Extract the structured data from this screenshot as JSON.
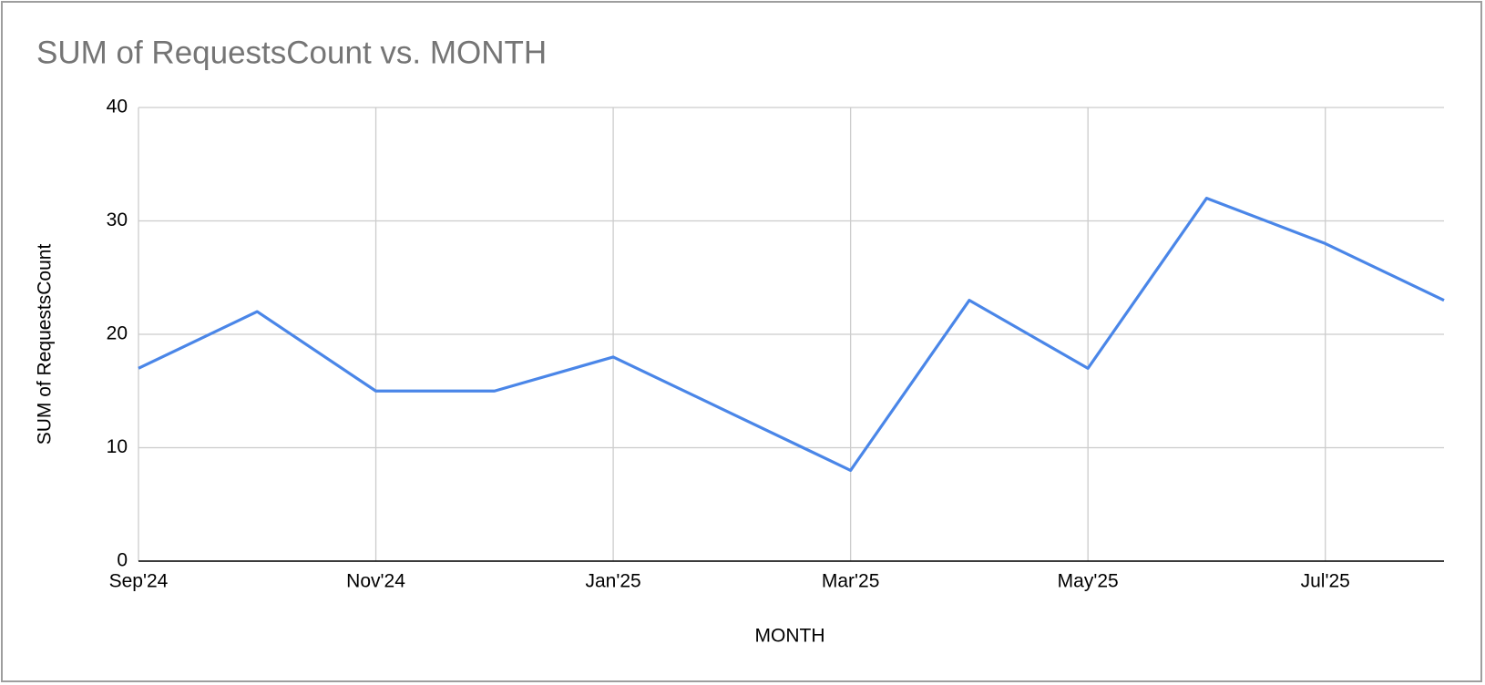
{
  "chart_data": {
    "type": "line",
    "title": "SUM of RequestsCount vs. MONTH",
    "x_label": "MONTH",
    "y_label": "SUM of RequestsCount",
    "categories": [
      "Sep'24",
      null,
      "Nov'24",
      null,
      "Jan'25",
      null,
      "Mar'25",
      null,
      "May'25",
      null,
      "Jul'25",
      null
    ],
    "series": [
      {
        "name": "SUM of RequestsCount",
        "color": "#4a86e8",
        "values": [
          17,
          22,
          15,
          15,
          18,
          13,
          8,
          23,
          17,
          32,
          28,
          23
        ]
      }
    ],
    "ylim": [
      0,
      40
    ],
    "yticks": [
      0,
      10,
      20,
      30,
      40
    ],
    "grid": true
  }
}
